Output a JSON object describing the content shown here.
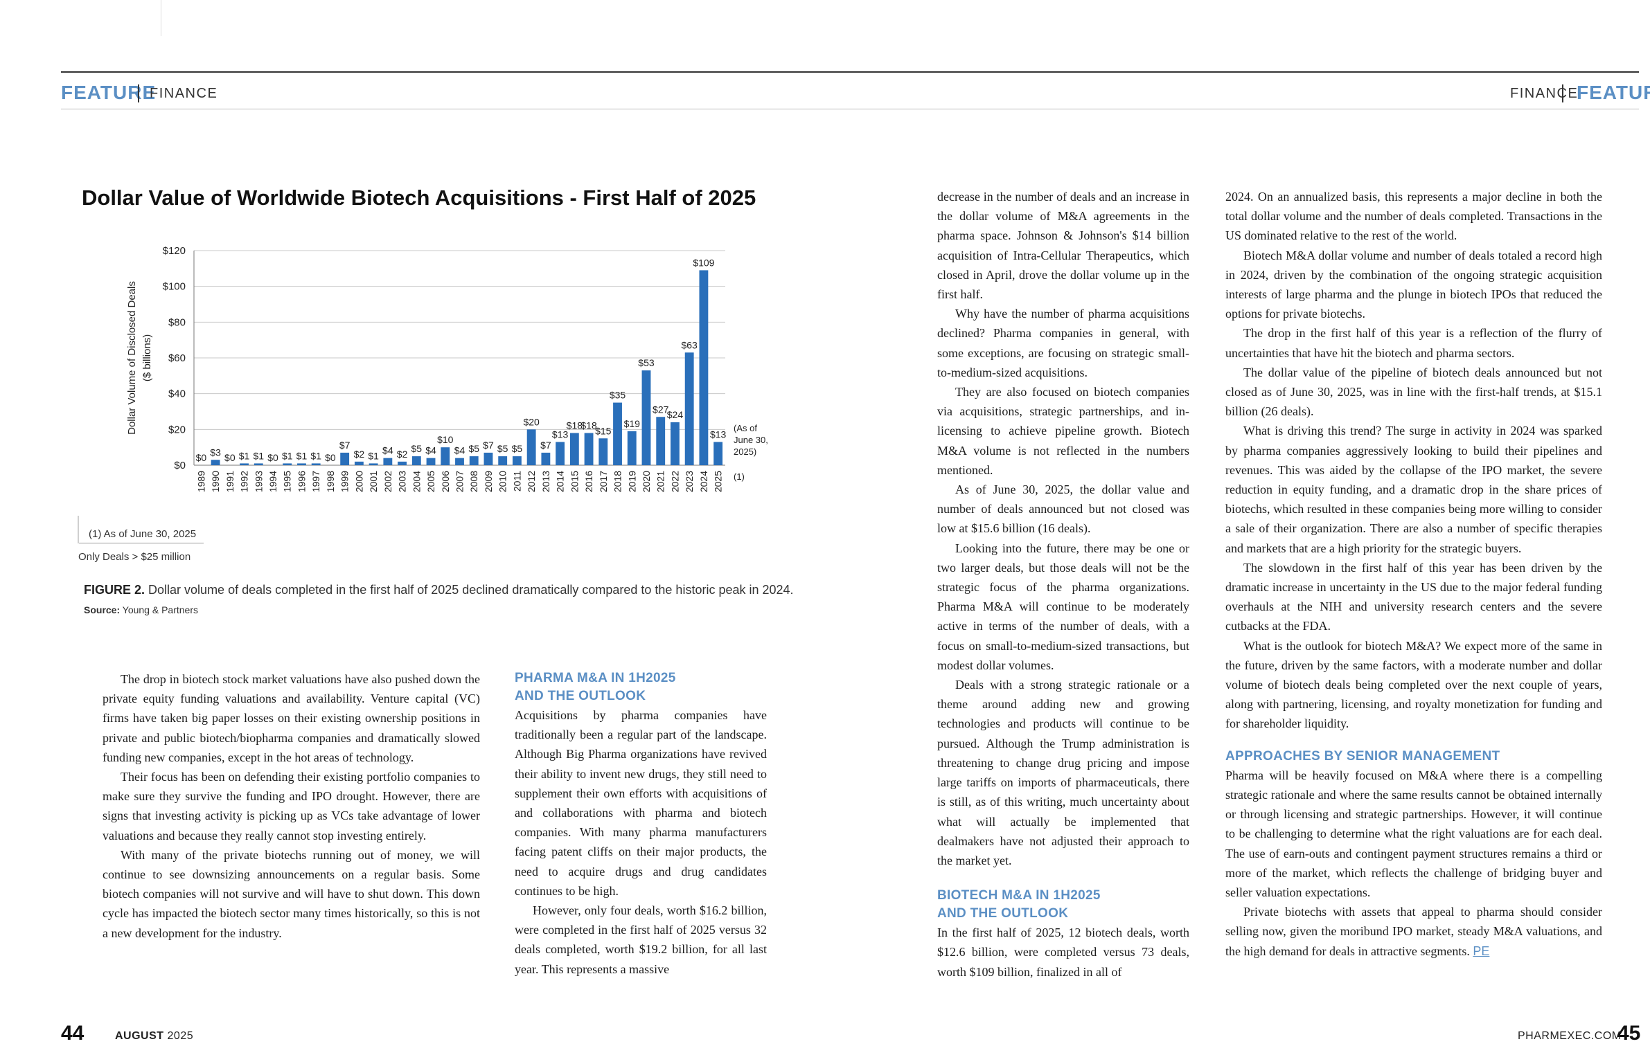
{
  "header": {
    "left_feature": "FEATURE",
    "left_section": "FINANCE",
    "right_section": "FINANCE",
    "right_feature": "FEATURE"
  },
  "chart_data": {
    "type": "bar",
    "title": "Dollar Value of Worldwide Biotech Acquisitions - First Half of 2025",
    "ylabel_line1": "Dollar Volume of Disclosed Deals",
    "ylabel_line2": "($ billions)",
    "ylim": [
      0,
      120
    ],
    "yticks": [
      "$0",
      "$20",
      "$40",
      "$60",
      "$80",
      "$100",
      "$120"
    ],
    "color": "#2a6fba",
    "grid": true,
    "categories": [
      "1989",
      "1990",
      "1991",
      "1992",
      "1993",
      "1994",
      "1995",
      "1996",
      "1997",
      "1998",
      "1999",
      "2000",
      "2001",
      "2002",
      "2003",
      "2004",
      "2005",
      "2006",
      "2007",
      "2008",
      "2009",
      "2010",
      "2011",
      "2012",
      "2013",
      "2014",
      "2015",
      "2016",
      "2017",
      "2018",
      "2019",
      "2020",
      "2021",
      "2022",
      "2023",
      "2024",
      "2025"
    ],
    "values": [
      0,
      3,
      0,
      1,
      1,
      0,
      1,
      1,
      1,
      0,
      7,
      2,
      1,
      4,
      2,
      5,
      4,
      10,
      4,
      5,
      7,
      5,
      5,
      20,
      7,
      13,
      18,
      18,
      15,
      35,
      19,
      53,
      27,
      24,
      63,
      109,
      13
    ],
    "data_labels": [
      "$0",
      "$3",
      "$0",
      "$1",
      "$1",
      "$0",
      "$1",
      "$1",
      "$1",
      "$0",
      "$7",
      "$2",
      "$1",
      "$4",
      "$2",
      "$5",
      "$4",
      "$10",
      "$4",
      "$5",
      "$7",
      "$5",
      "$5",
      "$20",
      "$7",
      "$13",
      "$18",
      "$18",
      "$15",
      "$35",
      "$19",
      "$53",
      "$27",
      "$24",
      "$63",
      "$109",
      "$13"
    ],
    "annotation": "(As of June 30, 2025)",
    "annotation_lines": [
      "(As of",
      "June 30,",
      "2025)"
    ],
    "footnote_marker": "(1)",
    "footnote": "(1) As of June 30, 2025",
    "note": "Only Deals > $25 million"
  },
  "figure": {
    "label": "FIGURE 2.",
    "caption": "Dollar volume of deals completed in the first half of 2025 declined dramatically compared to the historic peak in 2024.",
    "source_label": "Source:",
    "source": "Young & Partners"
  },
  "col1": {
    "p1": "The drop in biotech stock market valuations have also pushed down the private equity funding valuations and availability. Venture capital (VC) firms have taken big paper losses on their existing ownership positions in private and public biotech/biopharma companies and dramatically slowed funding new companies, except in the hot areas of technology.",
    "p2": "Their focus has been on defending their existing portfolio companies to make sure they survive the funding and IPO drought. However, there are signs that investing activity is picking up as VCs take advantage of lower valuations and because they really cannot stop investing entirely.",
    "p3": "With many of the private biotechs running out of money, we will continue to see downsizing announcements on a regular basis. Some biotech companies will not survive and will have to shut down. This down cycle has impacted the biotech sector many times historically, so this is not a new development for the industry."
  },
  "col2": {
    "h1": "PHARMA M&A IN 1H2025 AND THE OUTLOOK",
    "p1": "Acquisitions by pharma companies have traditionally been a regular part of the landscape. Although Big Pharma organizations have revived their ability to invent new drugs, they still need to supplement their own efforts with acquisitions of and collaborations with pharma and biotech companies. With many pharma manufacturers facing patent cliffs on their major products, the need to acquire drugs and drug candidates continues to be high.",
    "p2": "However, only four deals, worth $16.2 billion, were completed in the first half of 2025 versus 32 deals completed, worth $19.2 billion, for all last year. This represents a massive"
  },
  "col3": {
    "p1": "decrease in the number of deals and an increase in the dollar volume of M&A agreements in the pharma space. Johnson & Johnson's $14 billion acquisition of Intra-Cellular Therapeutics, which closed in April, drove the dollar volume up in the first half.",
    "p2": "Why have the number of pharma acquisitions declined? Pharma companies in general, with some exceptions, are focusing on strategic small-to-medium-sized acquisitions.",
    "p3": "They are also focused on biotech companies via acquisitions, strategic partnerships, and in-licensing to achieve pipeline growth. Biotech M&A volume is not reflected in the numbers mentioned.",
    "p4": "As of June 30, 2025, the dollar value and number of deals announced but not closed was low at $15.6 billion (16 deals).",
    "p5": "Looking into the future, there may be one or two larger deals, but those deals will not be the strategic focus of the pharma organizations. Pharma M&A will continue to be moderately active in terms of the number of deals, with a focus on small-to-medium-sized transactions, but modest dollar volumes.",
    "p6": "Deals with a strong strategic rationale or a theme around adding new and growing technologies and products will continue to be pursued. Although the Trump administration is threatening to change drug pricing and impose large tariffs on imports of pharmaceuticals, there is still, as of this writing, much uncertainty about what will actually be implemented that dealmakers have not adjusted their approach to the market yet.",
    "h2": "BIOTECH M&A IN 1H2025 AND THE OUTLOOK",
    "p7": "In the first half of 2025, 12 biotech deals, worth $12.6 billion, were completed versus 73 deals, worth $109 billion, finalized in all of"
  },
  "col4": {
    "p1": "2024. On an annualized basis, this represents a major decline in both the total dollar volume and the number of deals completed. Transactions in the US dominated relative to the rest of the world.",
    "p2": "Biotech M&A dollar volume and number of deals totaled a record high in 2024, driven by the combination of the ongoing strategic acquisition interests of large pharma and the plunge in biotech IPOs that reduced the options for private biotechs.",
    "p3": "The drop in the first half of this year is a reflection of the flurry of uncertainties that have hit the biotech and pharma sectors.",
    "p4": "The dollar value of the pipeline of biotech deals announced but not closed as of June 30, 2025, was in line with the first-half trends, at $15.1 billion (26 deals).",
    "p5": "What is driving this trend? The surge in activity in 2024 was sparked by pharma companies aggressively looking to build their pipelines and revenues. This was aided by the collapse of the IPO market, the severe reduction in equity funding, and a dramatic drop in the share prices of biotechs, which resulted in these companies being more willing to consider a sale of their organization. There are also a number of specific therapies and markets that are a high priority for the strategic buyers.",
    "p6": "The slowdown in the first half of this year has been driven by the dramatic increase in uncertainty in the US due to the major federal funding overhauls at the NIH and university research centers and the severe cutbacks at the FDA.",
    "p7": "What is the outlook for biotech M&A? We expect more of the same in the future, driven by the same factors, with a moderate number and dollar volume of biotech deals being completed over the next couple of years, along with partnering, licensing, and royalty monetization for funding and for shareholder liquidity.",
    "h3": "APPROACHES BY SENIOR MANAGEMENT",
    "p8": "Pharma will be heavily focused on M&A where there is a compelling strategic rationale and where the same results cannot be obtained internally or through licensing and strategic partnerships. However, it will continue to be challenging to determine what the right valuations are for each deal. The use of earn-outs and contingent payment structures remains a third or more of the market, which reflects the challenge of bridging buyer and seller valuation expectations.",
    "p9": "Private biotechs with assets that appeal to pharma should consider selling now, given the moribund IPO market, steady M&A valuations, and the high demand for deals in attractive segments.",
    "end_mark": "PE"
  },
  "footer": {
    "left_page": "44",
    "month": "AUGUST",
    "year": "2025",
    "site": "PHARMEXEC.COM",
    "right_page": "45"
  }
}
